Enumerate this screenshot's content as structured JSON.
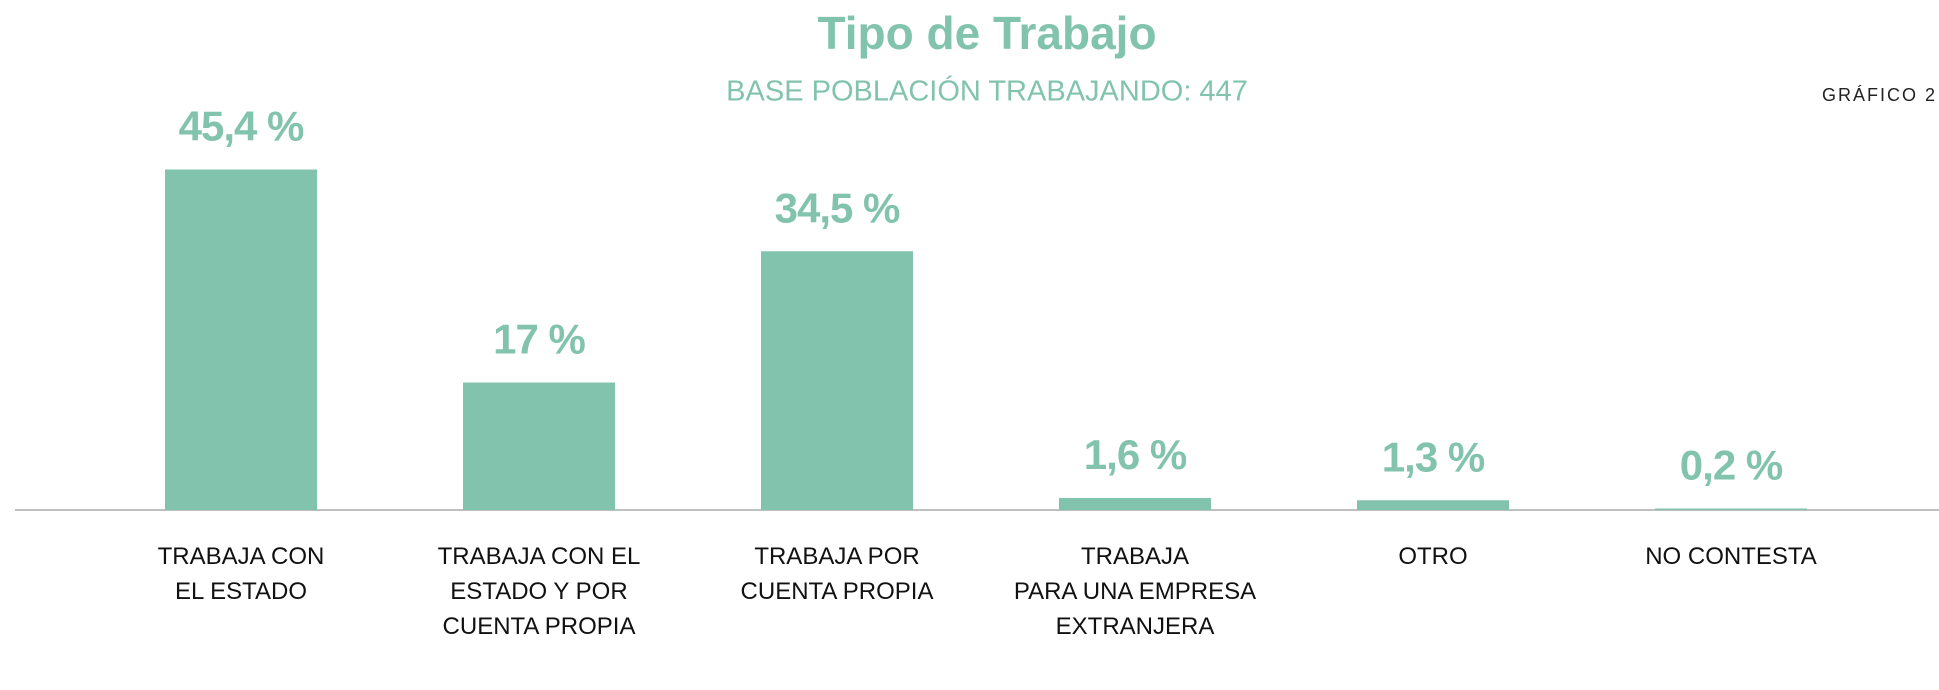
{
  "chart_data": {
    "type": "bar",
    "title": "Tipo de Trabajo",
    "subtitle": "BASE POBLACIÓN TRABAJANDO: 447",
    "annotation": "GRÁFICO 2",
    "categories": [
      [
        "TRABAJA CON",
        "EL ESTADO"
      ],
      [
        "TRABAJA CON EL",
        "ESTADO Y POR",
        "CUENTA PROPIA"
      ],
      [
        "TRABAJA POR",
        "CUENTA PROPIA"
      ],
      [
        "TRABAJA",
        "PARA UNA EMPRESA",
        "EXTRANJERA"
      ],
      [
        "OTRO"
      ],
      [
        "NO CONTESTA"
      ]
    ],
    "values": [
      45.4,
      17,
      34.5,
      1.6,
      1.3,
      0.2
    ],
    "value_labels": [
      "45,4 %",
      "17 %",
      "34,5 %",
      "1,6 %",
      "1,3 %",
      "0,2 %"
    ],
    "color": "#82c3ad",
    "ylim": [
      0,
      50
    ]
  }
}
